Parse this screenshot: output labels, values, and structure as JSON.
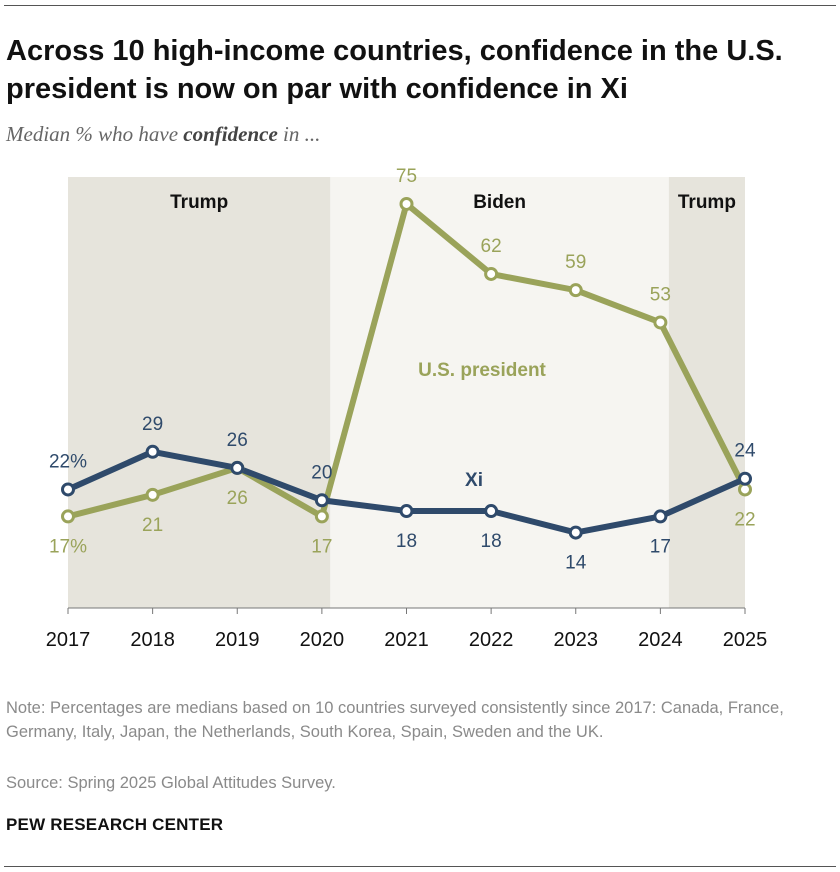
{
  "title": "Across 10 high-income countries, confidence in the U.S. president is now on par with confidence in Xi",
  "subtitle": {
    "prefix": "Median % who have",
    "emphasis": "confidence",
    "suffix": "in ..."
  },
  "note": "Note: Percentages are medians based on 10 countries surveyed consistently since 2017: Canada, France, Germany, Italy, Japan, the Netherlands, South Korea, Spain, Sweden and the UK.",
  "source": "Source: Spring 2025 Global Attitudes Survey.",
  "brand": "PEW RESEARCH CENTER",
  "chart_data": {
    "type": "line",
    "x": [
      "2017",
      "2018",
      "2019",
      "2020",
      "2021",
      "2022",
      "2023",
      "2024",
      "2025"
    ],
    "ylim": [
      0,
      80
    ],
    "series": [
      {
        "name": "U.S. president",
        "color": "#9aa35a",
        "values": [
          17,
          21,
          26,
          17,
          75,
          62,
          59,
          53,
          22
        ],
        "labels": [
          "17%",
          "21",
          "26",
          "17",
          "75",
          "62",
          "59",
          "53",
          "22"
        ]
      },
      {
        "name": "Xi",
        "color": "#2f4a6b",
        "values": [
          22,
          29,
          26,
          20,
          18,
          18,
          14,
          17,
          24
        ],
        "labels": [
          "22%",
          "29",
          "26",
          "20",
          "18",
          "18",
          "14",
          "17",
          "24"
        ]
      }
    ],
    "periods": [
      {
        "label": "Trump",
        "from": 2016.8,
        "to": 2020.1,
        "shade": "#e6e4dc"
      },
      {
        "label": "Biden",
        "from": 2020.1,
        "to": 2024.1,
        "shade": "#f6f5f1"
      },
      {
        "label": "Trump",
        "from": 2024.1,
        "to": 2025,
        "shade": "#e6e4dc"
      }
    ],
    "grid": false
  }
}
